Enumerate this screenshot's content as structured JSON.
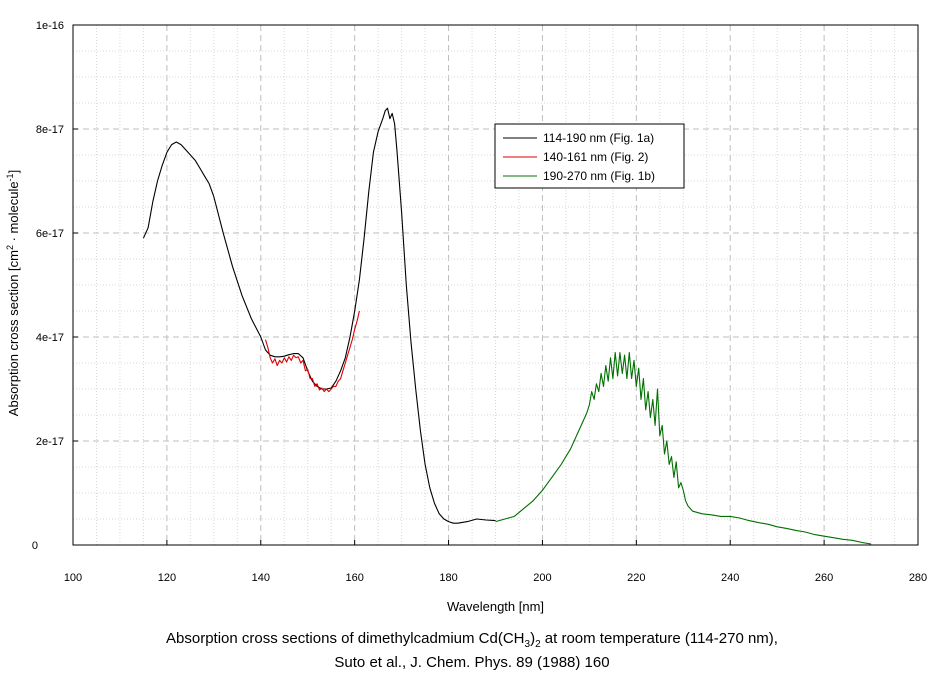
{
  "chart_data": {
    "type": "line",
    "xlabel": "Wavelength [nm]",
    "ylabel_parts": [
      "Absorption cross section [cm",
      "2",
      " · molecule",
      "-1",
      "]"
    ],
    "xlim": [
      100,
      280
    ],
    "ylim": [
      0,
      1e-16
    ],
    "x_ticks": [
      100,
      120,
      140,
      160,
      180,
      200,
      220,
      240,
      260,
      280
    ],
    "x_tick_labels": [
      "100",
      "120",
      "140",
      "160",
      "180",
      "200",
      "220",
      "240",
      "260",
      "280"
    ],
    "y_ticks": [
      0,
      2e-17,
      4e-17,
      6e-17,
      8e-17,
      1e-16
    ],
    "y_tick_labels": [
      "0",
      "2e-17",
      "4e-17",
      "6e-17",
      "8e-17",
      "1e-16"
    ],
    "grid": true,
    "legend_position": "top-center-right",
    "series": [
      {
        "name": "114-190 nm (Fig. 1a)",
        "color": "#000000",
        "x": [
          115,
          116,
          117,
          118,
          119,
          120,
          121,
          122,
          123,
          124,
          125,
          126,
          127,
          128,
          129,
          130,
          132,
          134,
          136,
          138,
          140,
          141,
          142,
          143,
          144,
          145,
          146,
          147,
          148,
          149,
          150,
          151,
          152,
          153,
          154,
          155,
          156,
          157,
          158,
          159,
          160,
          161,
          162,
          163,
          164,
          165,
          166,
          166.5,
          167,
          167.5,
          168,
          168.5,
          169,
          170,
          171,
          172,
          173,
          174,
          175,
          176,
          177,
          178,
          179,
          180,
          181,
          182,
          184,
          186,
          188,
          190
        ],
        "y": [
          5.9e-17,
          6.1e-17,
          6.6e-17,
          7e-17,
          7.3e-17,
          7.55e-17,
          7.7e-17,
          7.75e-17,
          7.7e-17,
          7.6e-17,
          7.5e-17,
          7.4e-17,
          7.25e-17,
          7.1e-17,
          6.95e-17,
          6.7e-17,
          6e-17,
          5.35e-17,
          4.8e-17,
          4.35e-17,
          4e-17,
          3.75e-17,
          3.65e-17,
          3.62e-17,
          3.62e-17,
          3.63e-17,
          3.66e-17,
          3.68e-17,
          3.68e-17,
          3.6e-17,
          3.35e-17,
          3.15e-17,
          3.05e-17,
          3e-17,
          3e-17,
          3.02e-17,
          3.15e-17,
          3.35e-17,
          3.6e-17,
          4e-17,
          4.5e-17,
          5.1e-17,
          5.9e-17,
          6.8e-17,
          7.55e-17,
          7.95e-17,
          8.2e-17,
          8.35e-17,
          8.4e-17,
          8.2e-17,
          8.3e-17,
          8.1e-17,
          7.6e-17,
          6.4e-17,
          5e-17,
          3.9e-17,
          3e-17,
          2.2e-17,
          1.55e-17,
          1.1e-17,
          8e-18,
          6e-18,
          5e-18,
          4.5e-18,
          4.2e-18,
          4.2e-18,
          4.5e-18,
          5e-18,
          4.8e-18,
          4.7e-18
        ]
      },
      {
        "name": "140-161 nm (Fig. 2)",
        "color": "#dd0000",
        "x": [
          141,
          141.5,
          142,
          142.5,
          143,
          143.5,
          144,
          144.5,
          145,
          145.5,
          146,
          146.5,
          147,
          147.5,
          148,
          148.5,
          149,
          149.5,
          150,
          150.5,
          151,
          151.5,
          152,
          152.5,
          153,
          153.5,
          154,
          154.5,
          155,
          155.5,
          156,
          156.5,
          157,
          157.5,
          158,
          158.5,
          159,
          159.5,
          160,
          160.5,
          161
        ],
        "y": [
          3.95e-17,
          3.8e-17,
          3.6e-17,
          3.5e-17,
          3.58e-17,
          3.45e-17,
          3.55e-17,
          3.5e-17,
          3.6e-17,
          3.52e-17,
          3.62e-17,
          3.55e-17,
          3.65e-17,
          3.6e-17,
          3.62e-17,
          3.5e-17,
          3.55e-17,
          3.35e-17,
          3.38e-17,
          3.2e-17,
          3.2e-17,
          3.05e-17,
          3.1e-17,
          2.98e-17,
          3.02e-17,
          2.95e-17,
          3e-17,
          2.95e-17,
          3e-17,
          3.05e-17,
          3.05e-17,
          3.15e-17,
          3.2e-17,
          3.35e-17,
          3.5e-17,
          3.65e-17,
          3.8e-17,
          3.95e-17,
          4.15e-17,
          4.3e-17,
          4.5e-17
        ]
      },
      {
        "name": "190-270 nm (Fig. 1b)",
        "color": "#007000",
        "x": [
          190,
          192,
          194,
          196,
          198,
          200,
          202,
          204,
          206,
          207,
          208,
          209,
          209.5,
          210,
          210.5,
          211,
          211.5,
          212,
          212.5,
          213,
          213.5,
          214,
          214.5,
          215,
          215.5,
          216,
          216.5,
          217,
          217.5,
          218,
          218.5,
          219,
          219.5,
          220,
          220.5,
          221,
          221.5,
          222,
          222.5,
          223,
          223.5,
          224,
          224.5,
          225,
          225.5,
          226,
          226.5,
          227,
          227.5,
          228,
          228.5,
          229,
          229.5,
          230,
          230.5,
          231,
          232,
          234,
          236,
          238,
          240,
          242,
          244,
          246,
          248,
          250,
          252,
          254,
          256,
          258,
          260,
          262,
          264,
          266,
          268,
          270
        ],
        "y": [
          4.5e-18,
          5e-18,
          5.5e-18,
          7e-18,
          8.5e-18,
          1.05e-17,
          1.3e-17,
          1.55e-17,
          1.85e-17,
          2.05e-17,
          2.25e-17,
          2.45e-17,
          2.55e-17,
          2.7e-17,
          2.95e-17,
          2.8e-17,
          3.1e-17,
          2.95e-17,
          3.3e-17,
          3.05e-17,
          3.45e-17,
          3.15e-17,
          3.6e-17,
          3.2e-17,
          3.7e-17,
          3.25e-17,
          3.7e-17,
          3.3e-17,
          3.65e-17,
          3.2e-17,
          3.7e-17,
          3.2e-17,
          3.55e-17,
          3.05e-17,
          3.4e-17,
          2.8e-17,
          3.2e-17,
          2.6e-17,
          2.95e-17,
          2.45e-17,
          2.8e-17,
          2.3e-17,
          3e-17,
          2.1e-17,
          2.3e-17,
          1.75e-17,
          2e-17,
          1.55e-17,
          1.7e-17,
          1.3e-17,
          1.6e-17,
          1.1e-17,
          1.2e-17,
          1.05e-17,
          8.5e-18,
          7.5e-18,
          6.5e-18,
          6e-18,
          5.8e-18,
          5.5e-18,
          5.5e-18,
          5.2e-18,
          4.7e-18,
          4.3e-18,
          4e-18,
          3.5e-18,
          3.2e-18,
          2.8e-18,
          2.5e-18,
          2e-18,
          1.7e-18,
          1.4e-18,
          1.1e-18,
          9e-19,
          5e-19,
          2e-19
        ]
      }
    ]
  },
  "caption": {
    "line1_prefix": "Absorption cross sections of dimethylcadmium Cd(CH",
    "line1_sub1": "3",
    "line1_mid": ")",
    "line1_sub2": "2",
    "line1_suffix": " at room temperature (114-270 nm),",
    "line2": "Suto et al., J. Chem. Phys. 89 (1988) 160"
  }
}
